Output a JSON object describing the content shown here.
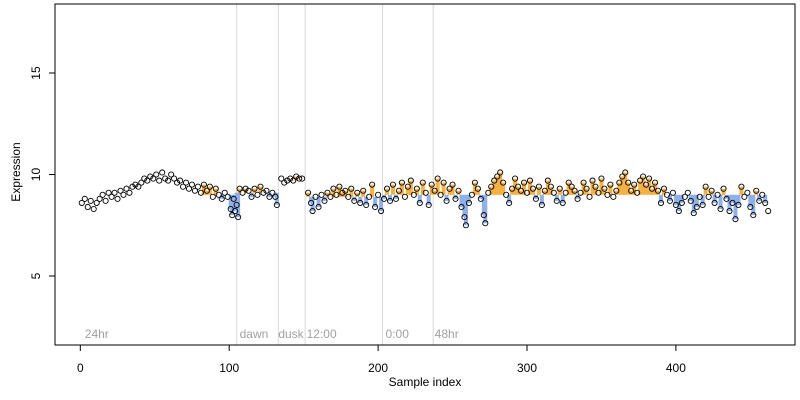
{
  "chart_data": {
    "type": "scatter",
    "title": "",
    "xlabel": "Sample index",
    "ylabel": "Expression",
    "xlim": [
      -17,
      480
    ],
    "ylim": [
      1.6,
      18.4
    ],
    "x_ticks": [
      "0",
      "100",
      "200",
      "300",
      "400"
    ],
    "x_tick_values": [
      0,
      100,
      200,
      300,
      400
    ],
    "y_ticks": [
      "5",
      "10",
      "15"
    ],
    "y_tick_values": [
      5,
      10,
      15
    ],
    "region_lines": [
      105,
      133,
      151,
      203,
      237
    ],
    "region_labels": [
      {
        "text": "24hr",
        "x": 3
      },
      {
        "text": "dawn",
        "x": 107
      },
      {
        "text": "dusk",
        "x": 133
      },
      {
        "text": "12:00",
        "x": 152
      },
      {
        "text": "0:00",
        "x": 205
      },
      {
        "text": "48hr",
        "x": 238
      }
    ],
    "colors": {
      "point_stroke": "#000000",
      "high_bar": "#f5b042",
      "low_bar": "#8fb0e8",
      "region_line": "#d8d8d8"
    },
    "baseline_segments": [
      {
        "x_start": 80,
        "x_end": 105,
        "baseline": 9.0
      },
      {
        "x_start": 105,
        "x_end": 133,
        "baseline": 9.1
      },
      {
        "x_start": 133,
        "x_end": 151,
        "baseline": 9.7
      },
      {
        "x_start": 151,
        "x_end": 203,
        "baseline": 8.9
      },
      {
        "x_start": 203,
        "x_end": 237,
        "baseline": 9.0
      },
      {
        "x_start": 237,
        "x_end": 300,
        "baseline": 9.0
      },
      {
        "x_start": 300,
        "x_end": 462,
        "baseline": 9.0
      }
    ],
    "points": [
      {
        "x": 1,
        "y": 8.6
      },
      {
        "x": 3,
        "y": 8.8
      },
      {
        "x": 5,
        "y": 8.4
      },
      {
        "x": 7,
        "y": 8.7
      },
      {
        "x": 9,
        "y": 8.3
      },
      {
        "x": 11,
        "y": 8.6
      },
      {
        "x": 13,
        "y": 8.8
      },
      {
        "x": 15,
        "y": 9.0
      },
      {
        "x": 17,
        "y": 8.7
      },
      {
        "x": 19,
        "y": 9.1
      },
      {
        "x": 21,
        "y": 8.9
      },
      {
        "x": 23,
        "y": 9.1
      },
      {
        "x": 25,
        "y": 8.8
      },
      {
        "x": 27,
        "y": 9.2
      },
      {
        "x": 29,
        "y": 9.0
      },
      {
        "x": 31,
        "y": 9.3
      },
      {
        "x": 33,
        "y": 9.1
      },
      {
        "x": 35,
        "y": 9.4
      },
      {
        "x": 37,
        "y": 9.5
      },
      {
        "x": 39,
        "y": 9.4
      },
      {
        "x": 41,
        "y": 9.6
      },
      {
        "x": 43,
        "y": 9.8
      },
      {
        "x": 45,
        "y": 9.7
      },
      {
        "x": 47,
        "y": 9.9
      },
      {
        "x": 49,
        "y": 9.8
      },
      {
        "x": 51,
        "y": 10.0
      },
      {
        "x": 53,
        "y": 9.7
      },
      {
        "x": 55,
        "y": 10.1
      },
      {
        "x": 57,
        "y": 9.8
      },
      {
        "x": 59,
        "y": 9.7
      },
      {
        "x": 61,
        "y": 10.0
      },
      {
        "x": 63,
        "y": 9.8
      },
      {
        "x": 65,
        "y": 9.6
      },
      {
        "x": 67,
        "y": 9.7
      },
      {
        "x": 69,
        "y": 9.4
      },
      {
        "x": 71,
        "y": 9.6
      },
      {
        "x": 73,
        "y": 9.3
      },
      {
        "x": 75,
        "y": 9.5
      },
      {
        "x": 77,
        "y": 9.2
      },
      {
        "x": 79,
        "y": 9.4
      },
      {
        "x": 81,
        "y": 9.1
      },
      {
        "x": 83,
        "y": 9.5
      },
      {
        "x": 85,
        "y": 9.2
      },
      {
        "x": 87,
        "y": 9.4
      },
      {
        "x": 89,
        "y": 8.9
      },
      {
        "x": 91,
        "y": 9.3
      },
      {
        "x": 93,
        "y": 9.0
      },
      {
        "x": 95,
        "y": 8.8
      },
      {
        "x": 97,
        "y": 9.1
      },
      {
        "x": 99,
        "y": 8.9
      },
      {
        "x": 101,
        "y": 8.3
      },
      {
        "x": 102,
        "y": 8.0
      },
      {
        "x": 103,
        "y": 8.8
      },
      {
        "x": 104,
        "y": 8.2
      },
      {
        "x": 105,
        "y": 8.5
      },
      {
        "x": 106,
        "y": 7.9
      },
      {
        "x": 107,
        "y": 9.3
      },
      {
        "x": 109,
        "y": 9.1
      },
      {
        "x": 111,
        "y": 9.3
      },
      {
        "x": 113,
        "y": 9.2
      },
      {
        "x": 115,
        "y": 8.9
      },
      {
        "x": 117,
        "y": 9.3
      },
      {
        "x": 119,
        "y": 9.0
      },
      {
        "x": 121,
        "y": 9.4
      },
      {
        "x": 123,
        "y": 9.1
      },
      {
        "x": 125,
        "y": 9.2
      },
      {
        "x": 127,
        "y": 8.9
      },
      {
        "x": 129,
        "y": 9.1
      },
      {
        "x": 131,
        "y": 8.9
      },
      {
        "x": 132,
        "y": 8.5
      },
      {
        "x": 135,
        "y": 9.8
      },
      {
        "x": 137,
        "y": 9.6
      },
      {
        "x": 139,
        "y": 9.7
      },
      {
        "x": 141,
        "y": 9.8
      },
      {
        "x": 143,
        "y": 9.7
      },
      {
        "x": 145,
        "y": 9.9
      },
      {
        "x": 147,
        "y": 9.8
      },
      {
        "x": 149,
        "y": 9.8
      },
      {
        "x": 153,
        "y": 9.1
      },
      {
        "x": 155,
        "y": 8.6
      },
      {
        "x": 156,
        "y": 8.2
      },
      {
        "x": 158,
        "y": 8.9
      },
      {
        "x": 160,
        "y": 8.4
      },
      {
        "x": 162,
        "y": 9.0
      },
      {
        "x": 164,
        "y": 8.7
      },
      {
        "x": 166,
        "y": 9.1
      },
      {
        "x": 168,
        "y": 8.9
      },
      {
        "x": 170,
        "y": 9.3
      },
      {
        "x": 172,
        "y": 9.0
      },
      {
        "x": 174,
        "y": 9.4
      },
      {
        "x": 176,
        "y": 9.1
      },
      {
        "x": 178,
        "y": 9.2
      },
      {
        "x": 180,
        "y": 8.9
      },
      {
        "x": 182,
        "y": 9.3
      },
      {
        "x": 184,
        "y": 8.7
      },
      {
        "x": 186,
        "y": 9.1
      },
      {
        "x": 188,
        "y": 8.6
      },
      {
        "x": 190,
        "y": 9.2
      },
      {
        "x": 192,
        "y": 8.5
      },
      {
        "x": 194,
        "y": 8.9
      },
      {
        "x": 196,
        "y": 9.5
      },
      {
        "x": 198,
        "y": 8.4
      },
      {
        "x": 200,
        "y": 9.0
      },
      {
        "x": 202,
        "y": 8.2
      },
      {
        "x": 204,
        "y": 8.8
      },
      {
        "x": 206,
        "y": 9.3
      },
      {
        "x": 208,
        "y": 8.7
      },
      {
        "x": 210,
        "y": 9.5
      },
      {
        "x": 212,
        "y": 8.8
      },
      {
        "x": 214,
        "y": 9.2
      },
      {
        "x": 216,
        "y": 9.6
      },
      {
        "x": 218,
        "y": 8.9
      },
      {
        "x": 220,
        "y": 9.4
      },
      {
        "x": 222,
        "y": 9.7
      },
      {
        "x": 224,
        "y": 9.0
      },
      {
        "x": 226,
        "y": 9.3
      },
      {
        "x": 228,
        "y": 8.6
      },
      {
        "x": 230,
        "y": 9.6
      },
      {
        "x": 232,
        "y": 9.1
      },
      {
        "x": 234,
        "y": 8.5
      },
      {
        "x": 236,
        "y": 9.5
      },
      {
        "x": 238,
        "y": 9.2
      },
      {
        "x": 240,
        "y": 9.8
      },
      {
        "x": 242,
        "y": 9.0
      },
      {
        "x": 244,
        "y": 9.6
      },
      {
        "x": 246,
        "y": 8.7
      },
      {
        "x": 248,
        "y": 9.3
      },
      {
        "x": 250,
        "y": 9.5
      },
      {
        "x": 252,
        "y": 8.8
      },
      {
        "x": 254,
        "y": 9.2
      },
      {
        "x": 256,
        "y": 8.4
      },
      {
        "x": 258,
        "y": 7.9
      },
      {
        "x": 259,
        "y": 7.5
      },
      {
        "x": 261,
        "y": 8.6
      },
      {
        "x": 263,
        "y": 9.0
      },
      {
        "x": 265,
        "y": 9.6
      },
      {
        "x": 267,
        "y": 9.3
      },
      {
        "x": 269,
        "y": 8.8
      },
      {
        "x": 271,
        "y": 8.0
      },
      {
        "x": 272,
        "y": 7.6
      },
      {
        "x": 274,
        "y": 9.1
      },
      {
        "x": 276,
        "y": 9.4
      },
      {
        "x": 278,
        "y": 9.7
      },
      {
        "x": 280,
        "y": 9.9
      },
      {
        "x": 282,
        "y": 10.1
      },
      {
        "x": 284,
        "y": 9.6
      },
      {
        "x": 286,
        "y": 9.0
      },
      {
        "x": 288,
        "y": 8.6
      },
      {
        "x": 290,
        "y": 9.3
      },
      {
        "x": 292,
        "y": 9.8
      },
      {
        "x": 294,
        "y": 9.4
      },
      {
        "x": 296,
        "y": 9.2
      },
      {
        "x": 298,
        "y": 9.6
      },
      {
        "x": 300,
        "y": 9.1
      },
      {
        "x": 302,
        "y": 9.7
      },
      {
        "x": 304,
        "y": 9.3
      },
      {
        "x": 306,
        "y": 8.8
      },
      {
        "x": 308,
        "y": 9.4
      },
      {
        "x": 310,
        "y": 8.5
      },
      {
        "x": 312,
        "y": 9.2
      },
      {
        "x": 314,
        "y": 9.7
      },
      {
        "x": 316,
        "y": 9.4
      },
      {
        "x": 318,
        "y": 9.1
      },
      {
        "x": 320,
        "y": 8.7
      },
      {
        "x": 322,
        "y": 9.3
      },
      {
        "x": 324,
        "y": 8.6
      },
      {
        "x": 326,
        "y": 9.1
      },
      {
        "x": 328,
        "y": 9.6
      },
      {
        "x": 330,
        "y": 9.4
      },
      {
        "x": 332,
        "y": 9.2
      },
      {
        "x": 334,
        "y": 8.8
      },
      {
        "x": 336,
        "y": 9.1
      },
      {
        "x": 338,
        "y": 9.6
      },
      {
        "x": 340,
        "y": 9.3
      },
      {
        "x": 342,
        "y": 8.9
      },
      {
        "x": 344,
        "y": 9.7
      },
      {
        "x": 346,
        "y": 9.4
      },
      {
        "x": 348,
        "y": 9.1
      },
      {
        "x": 350,
        "y": 9.8
      },
      {
        "x": 352,
        "y": 9.3
      },
      {
        "x": 354,
        "y": 9.0
      },
      {
        "x": 356,
        "y": 9.5
      },
      {
        "x": 358,
        "y": 8.9
      },
      {
        "x": 360,
        "y": 9.2
      },
      {
        "x": 362,
        "y": 9.6
      },
      {
        "x": 364,
        "y": 9.9
      },
      {
        "x": 366,
        "y": 10.1
      },
      {
        "x": 368,
        "y": 9.6
      },
      {
        "x": 370,
        "y": 9.2
      },
      {
        "x": 372,
        "y": 9.5
      },
      {
        "x": 374,
        "y": 9.1
      },
      {
        "x": 376,
        "y": 9.7
      },
      {
        "x": 378,
        "y": 9.9
      },
      {
        "x": 380,
        "y": 9.5
      },
      {
        "x": 382,
        "y": 9.8
      },
      {
        "x": 384,
        "y": 9.3
      },
      {
        "x": 386,
        "y": 9.6
      },
      {
        "x": 388,
        "y": 9.2
      },
      {
        "x": 390,
        "y": 8.6
      },
      {
        "x": 392,
        "y": 9.3
      },
      {
        "x": 394,
        "y": 9.0
      },
      {
        "x": 396,
        "y": 8.7
      },
      {
        "x": 398,
        "y": 9.1
      },
      {
        "x": 400,
        "y": 8.5
      },
      {
        "x": 402,
        "y": 8.2
      },
      {
        "x": 404,
        "y": 8.6
      },
      {
        "x": 406,
        "y": 8.9
      },
      {
        "x": 408,
        "y": 9.1
      },
      {
        "x": 410,
        "y": 8.7
      },
      {
        "x": 412,
        "y": 8.1
      },
      {
        "x": 414,
        "y": 8.4
      },
      {
        "x": 416,
        "y": 8.9
      },
      {
        "x": 418,
        "y": 8.5
      },
      {
        "x": 420,
        "y": 9.4
      },
      {
        "x": 422,
        "y": 8.9
      },
      {
        "x": 424,
        "y": 9.2
      },
      {
        "x": 426,
        "y": 8.6
      },
      {
        "x": 428,
        "y": 9.0
      },
      {
        "x": 430,
        "y": 8.3
      },
      {
        "x": 432,
        "y": 9.3
      },
      {
        "x": 434,
        "y": 8.8
      },
      {
        "x": 436,
        "y": 8.2
      },
      {
        "x": 438,
        "y": 8.6
      },
      {
        "x": 440,
        "y": 7.8
      },
      {
        "x": 442,
        "y": 8.5
      },
      {
        "x": 444,
        "y": 9.4
      },
      {
        "x": 446,
        "y": 8.9
      },
      {
        "x": 448,
        "y": 9.1
      },
      {
        "x": 450,
        "y": 8.4
      },
      {
        "x": 452,
        "y": 8.0
      },
      {
        "x": 454,
        "y": 9.2
      },
      {
        "x": 456,
        "y": 8.7
      },
      {
        "x": 458,
        "y": 9.0
      },
      {
        "x": 460,
        "y": 8.6
      },
      {
        "x": 462,
        "y": 8.2
      }
    ]
  }
}
